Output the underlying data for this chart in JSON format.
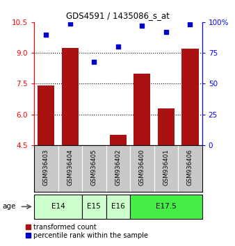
{
  "title": "GDS4591 / 1435086_s_at",
  "samples": [
    "GSM936403",
    "GSM936404",
    "GSM936405",
    "GSM936402",
    "GSM936400",
    "GSM936401",
    "GSM936406"
  ],
  "transformed_count": [
    7.4,
    9.25,
    4.51,
    5.0,
    8.0,
    6.3,
    9.2
  ],
  "percentile_rank": [
    90,
    99,
    68,
    80,
    97,
    92,
    98
  ],
  "age_group_spans": [
    {
      "label": "E14",
      "start": 0,
      "end": 2,
      "color": "#ccffcc"
    },
    {
      "label": "E15",
      "start": 2,
      "end": 3,
      "color": "#ccffcc"
    },
    {
      "label": "E16",
      "start": 3,
      "end": 4,
      "color": "#ccffcc"
    },
    {
      "label": "E17.5",
      "start": 4,
      "end": 7,
      "color": "#44ee44"
    }
  ],
  "ylim_left": [
    4.5,
    10.5
  ],
  "ylim_right": [
    0,
    100
  ],
  "yticks_left": [
    4.5,
    6.0,
    7.5,
    9.0,
    10.5
  ],
  "yticks_right": [
    0,
    25,
    50,
    75,
    100
  ],
  "ytick_labels_right": [
    "0",
    "25",
    "50",
    "75",
    "100%"
  ],
  "bar_color": "#aa1111",
  "scatter_color": "#0000cc",
  "bar_bottom": 4.5,
  "legend_red_label": "transformed count",
  "legend_blue_label": "percentile rank within the sample",
  "grid_lines": [
    6.0,
    7.5,
    9.0
  ]
}
